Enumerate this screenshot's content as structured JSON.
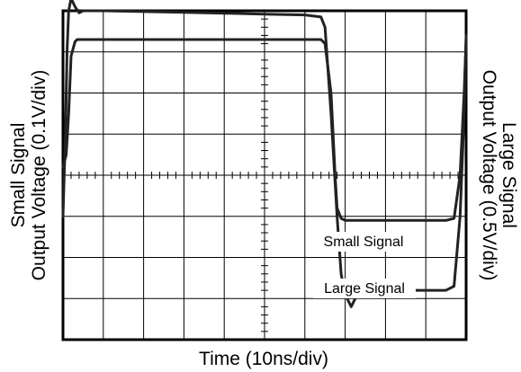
{
  "chart_data": {
    "type": "line",
    "title": "",
    "xlabel": "Time (10ns/div)",
    "ylabel_left": [
      "Small Signal",
      "Output Voltage (0.1V/div)"
    ],
    "ylabel_right": [
      "Large Signal",
      "Output Voltage (0.5V/div)"
    ],
    "divisions": {
      "x": 10,
      "y": 8
    },
    "xlim": [
      0,
      100
    ],
    "ylim": [
      0,
      8
    ],
    "grid": true,
    "series": [
      {
        "name": "Small Signal",
        "x": [
          0,
          0.8,
          1.4,
          2,
          3,
          3.5,
          4,
          5,
          10,
          20,
          35,
          50,
          60,
          64,
          65,
          66.5,
          67.5,
          68,
          69,
          70,
          72,
          80,
          90,
          95,
          97,
          98.5,
          99.5,
          100
        ],
        "y": [
          4.2,
          4.5,
          5.5,
          6.9,
          7.25,
          7.3,
          7.3,
          7.3,
          7.3,
          7.3,
          7.3,
          7.3,
          7.3,
          7.3,
          7.2,
          6.0,
          4.0,
          3.2,
          2.95,
          2.9,
          2.9,
          2.9,
          2.9,
          2.9,
          2.95,
          4.0,
          6.0,
          7.3
        ]
      },
      {
        "name": "Large Signal",
        "x": [
          0,
          0.6,
          1,
          1.4,
          2,
          3,
          4,
          5,
          7,
          10,
          20,
          30,
          40,
          50,
          60,
          64,
          65,
          66.5,
          68,
          69,
          70,
          71.5,
          73,
          74,
          75,
          78,
          80,
          90,
          95,
          97,
          98.5,
          99.5,
          100
        ],
        "y": [
          3.0,
          5.0,
          7.0,
          8.0,
          8.3,
          8.1,
          7.95,
          8.0,
          8.0,
          8.0,
          7.98,
          7.96,
          7.94,
          7.92,
          7.9,
          7.85,
          7.6,
          5.5,
          3.0,
          1.6,
          1.1,
          0.8,
          1.1,
          1.35,
          1.25,
          1.2,
          1.2,
          1.2,
          1.2,
          1.3,
          3.0,
          5.5,
          7.4
        ]
      }
    ]
  }
}
